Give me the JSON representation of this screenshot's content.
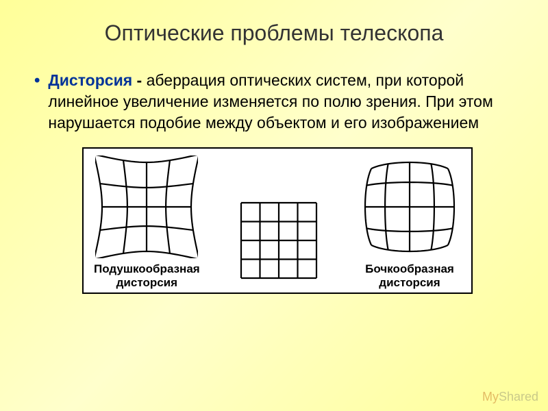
{
  "title": "Оптические проблемы телескопа",
  "bullet": {
    "term": "Дисторсия",
    "dash": " - ",
    "definition": "аберрация оптических систем, при которой линейное увеличение изменяется по полю зрения. При этом нарушается подобие между объектом и его изображением"
  },
  "diagram": {
    "background": "#ffffff",
    "border_color": "#000000",
    "stroke": "#000000",
    "stroke_width": 2.2,
    "panels": [
      {
        "type": "pincushion",
        "label_line1": "Подушкообразная",
        "label_line2": "дисторсия",
        "size": 150,
        "grid_segments": 4,
        "curve_amount": 0.18
      },
      {
        "type": "square",
        "label_line1": "",
        "label_line2": "",
        "size": 130,
        "grid_segments": 4
      },
      {
        "type": "barrel",
        "label_line1": "Бочкообразная",
        "label_line2": "дисторсия",
        "size": 150,
        "grid_segments": 4,
        "curve_amount": 0.14
      }
    ]
  },
  "watermark": {
    "prefix": "My",
    "suffix": "Shared"
  }
}
